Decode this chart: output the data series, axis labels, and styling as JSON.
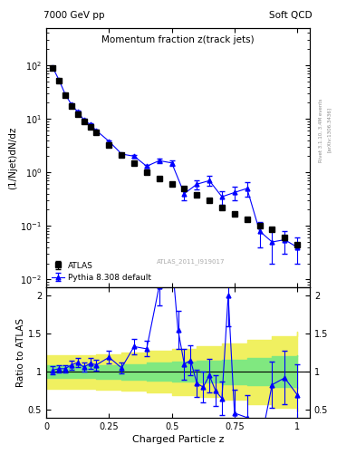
{
  "title_main": "Momentum fraction z(track jets)",
  "top_left_label": "7000 GeV pp",
  "top_right_label": "Soft QCD",
  "ylabel_main": "(1/Njet)dN/dz",
  "ylabel_ratio": "Ratio to ATLAS",
  "xlabel": "Charged Particle z",
  "watermark": "ATLAS_2011_I919017",
  "right_label_top": "Rivet 3.1.10, 3.4M events",
  "right_label_bot": "[arXiv:1306.3436]",
  "legend_data": "ATLAS",
  "legend_mc": "Pythia 8.308 default",
  "atlas_x": [
    0.025,
    0.05,
    0.075,
    0.1,
    0.125,
    0.15,
    0.175,
    0.2,
    0.25,
    0.3,
    0.35,
    0.4,
    0.45,
    0.5,
    0.55,
    0.6,
    0.65,
    0.7,
    0.75,
    0.8,
    0.85,
    0.9,
    0.95,
    1.0
  ],
  "atlas_y": [
    90.0,
    52.0,
    28.0,
    17.0,
    12.0,
    9.0,
    7.0,
    5.5,
    3.2,
    2.1,
    1.5,
    1.0,
    0.78,
    0.6,
    0.5,
    0.38,
    0.3,
    0.22,
    0.17,
    0.13,
    0.1,
    0.085,
    0.06,
    0.045
  ],
  "atlas_yerr": [
    4.5,
    2.5,
    1.4,
    0.85,
    0.6,
    0.45,
    0.35,
    0.28,
    0.16,
    0.1,
    0.08,
    0.05,
    0.04,
    0.03,
    0.025,
    0.02,
    0.015,
    0.012,
    0.01,
    0.008,
    0.007,
    0.006,
    0.005,
    0.004
  ],
  "mc_x": [
    0.025,
    0.05,
    0.075,
    0.1,
    0.125,
    0.15,
    0.175,
    0.2,
    0.25,
    0.3,
    0.35,
    0.4,
    0.45,
    0.5,
    0.55,
    0.6,
    0.65,
    0.7,
    0.75,
    0.8,
    0.85,
    0.9,
    0.95,
    1.0
  ],
  "mc_y": [
    92.0,
    54.0,
    29.0,
    18.5,
    13.5,
    9.5,
    7.8,
    6.0,
    3.8,
    2.2,
    2.0,
    1.3,
    1.65,
    1.5,
    0.4,
    0.6,
    0.7,
    0.35,
    0.42,
    0.5,
    0.08,
    0.05,
    0.055,
    0.04
  ],
  "mc_yerr": [
    4.0,
    2.5,
    1.3,
    0.85,
    0.6,
    0.45,
    0.35,
    0.28,
    0.18,
    0.1,
    0.1,
    0.07,
    0.15,
    0.18,
    0.1,
    0.12,
    0.15,
    0.1,
    0.12,
    0.15,
    0.04,
    0.03,
    0.025,
    0.02
  ],
  "ratio_x": [
    0.025,
    0.05,
    0.075,
    0.1,
    0.125,
    0.15,
    0.175,
    0.2,
    0.25,
    0.3,
    0.35,
    0.4,
    0.45,
    0.5,
    0.525,
    0.55,
    0.575,
    0.6,
    0.625,
    0.65,
    0.675,
    0.7,
    0.725,
    0.75,
    0.8,
    0.85,
    0.9,
    0.95,
    1.0
  ],
  "ratio_y": [
    1.02,
    1.04,
    1.04,
    1.09,
    1.12,
    1.06,
    1.11,
    1.09,
    1.19,
    1.05,
    1.33,
    1.3,
    2.12,
    2.5,
    1.55,
    1.1,
    1.15,
    0.85,
    0.8,
    0.95,
    0.75,
    0.65,
    2.0,
    0.46,
    0.4,
    0.0,
    0.83,
    0.92,
    0.7
  ],
  "ratio_yerr": [
    0.05,
    0.05,
    0.05,
    0.06,
    0.06,
    0.06,
    0.07,
    0.07,
    0.08,
    0.07,
    0.1,
    0.1,
    0.25,
    0.35,
    0.25,
    0.2,
    0.2,
    0.18,
    0.2,
    0.22,
    0.2,
    0.22,
    0.4,
    0.3,
    0.3,
    0.35,
    0.3,
    0.35,
    0.4
  ],
  "green_band_x": [
    0.0,
    0.1,
    0.2,
    0.3,
    0.4,
    0.5,
    0.6,
    0.7,
    0.8,
    0.9,
    1.0
  ],
  "green_band_lo": [
    0.92,
    0.92,
    0.91,
    0.9,
    0.88,
    0.87,
    0.86,
    0.84,
    0.82,
    0.8,
    0.78
  ],
  "green_band_hi": [
    1.08,
    1.08,
    1.09,
    1.1,
    1.12,
    1.13,
    1.14,
    1.16,
    1.18,
    1.2,
    1.22
  ],
  "yellow_band_x": [
    0.0,
    0.1,
    0.2,
    0.3,
    0.4,
    0.5,
    0.6,
    0.7,
    0.8,
    0.9,
    1.0
  ],
  "yellow_band_lo": [
    0.78,
    0.78,
    0.77,
    0.75,
    0.73,
    0.7,
    0.67,
    0.63,
    0.58,
    0.53,
    0.48
  ],
  "yellow_band_hi": [
    1.22,
    1.22,
    1.23,
    1.25,
    1.27,
    1.3,
    1.33,
    1.37,
    1.42,
    1.47,
    1.52
  ],
  "ylim_main": [
    0.007,
    500.0
  ],
  "ylim_ratio": [
    0.4,
    2.1
  ],
  "xlim": [
    0.0,
    1.05
  ],
  "yticks_ratio": [
    0.5,
    1.0,
    1.5,
    2.0
  ],
  "ytick_labels_ratio": [
    "0.5",
    "1",
    "1.5",
    "2"
  ],
  "data_color": "black",
  "mc_color": "blue",
  "green_color": "#80e880",
  "yellow_color": "#f0f060",
  "background_color": "white"
}
